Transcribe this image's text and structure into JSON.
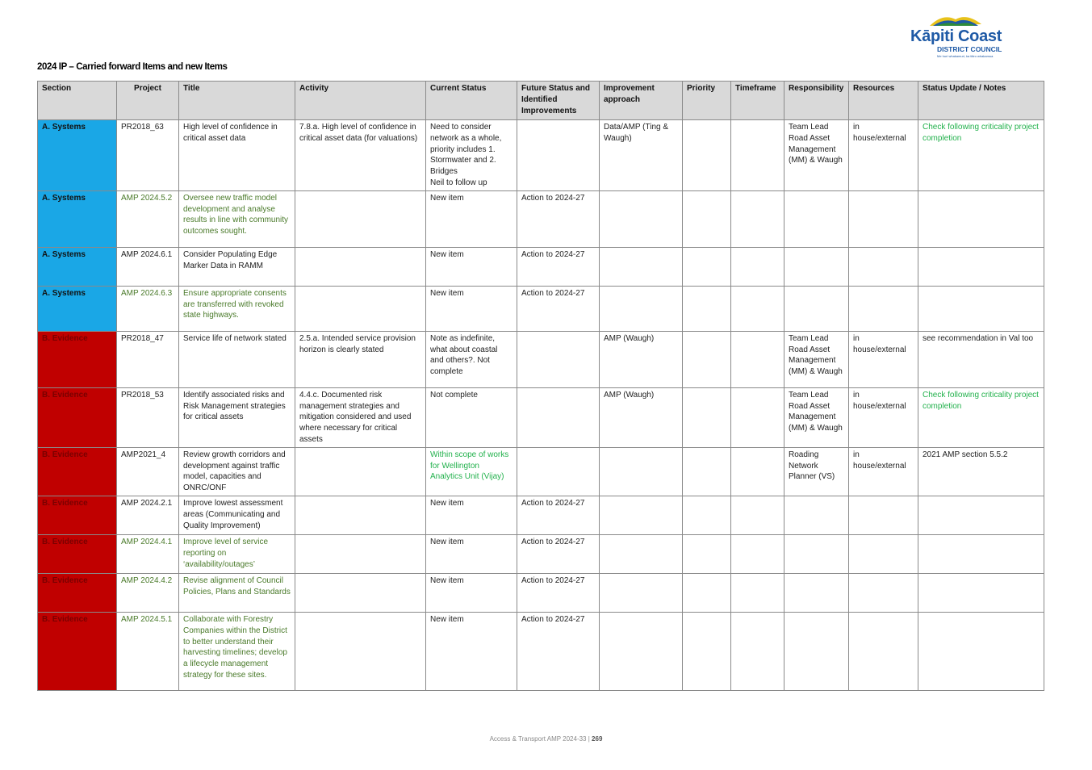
{
  "logo": {
    "name": "Kāpiti Coast",
    "sub": "DISTRICT COUNCIL",
    "tagline": "Me huri whakamuri, ka titiro whakamua"
  },
  "title": "2024 IP – Carried forward Items and new Items",
  "columns": [
    "Section",
    "Project",
    "Title",
    "Activity",
    "Current Status",
    "Future Status and Identified Improvements",
    "Improvement approach",
    "Priority",
    "Timeframe",
    "Responsibility",
    "Resources",
    "Status Update / Notes"
  ],
  "rows": [
    {
      "section": "A. Systems",
      "project": "PR2018_63",
      "title": "High level of confidence in critical  asset data",
      "activity": "7.8.a. High level of confidence in critical  asset data (for valuations)",
      "current": "Need to consider network as a whole, priority includes 1. Stormwater and 2. Bridges\nNeil to follow up",
      "future": "",
      "approach": "Data/AMP (Ting & Waugh)",
      "priority": "",
      "timeframe": "",
      "responsibility": "Team Lead Road Asset Management (MM) & Waugh",
      "resources": "in house/external",
      "notes": "Check following criticality project completion"
    },
    {
      "section": "A. Systems",
      "project": "AMP 2024.5.2",
      "title": "Oversee new traffic model development and analyse results in line with community outcomes sought.",
      "activity": "",
      "current": "New item",
      "future": "Action to 2024-27",
      "approach": "",
      "priority": "",
      "timeframe": "",
      "responsibility": "",
      "resources": "",
      "notes": ""
    },
    {
      "section": "A. Systems",
      "project": "AMP 2024.6.1",
      "title": "Consider Populating Edge Marker Data in RAMM",
      "activity": "",
      "current": "New item",
      "future": "Action to 2024-27",
      "approach": "",
      "priority": "",
      "timeframe": "",
      "responsibility": "",
      "resources": "",
      "notes": ""
    },
    {
      "section": "A. Systems",
      "project": "AMP 2024.6.3",
      "title": "Ensure appropriate consents are transferred with revoked state highways.",
      "activity": "",
      "current": "New item",
      "future": "Action to 2024-27",
      "approach": "",
      "priority": "",
      "timeframe": "",
      "responsibility": "",
      "resources": "",
      "notes": ""
    },
    {
      "section": "B. Evidence",
      "project": "PR2018_47",
      "title": "Service life of network stated",
      "activity": "2.5.a. Intended service provision horizon is clearly stated",
      "current": "Note as indefinite, what about coastal and others?.  Not complete",
      "future": "",
      "approach": "AMP (Waugh)",
      "priority": "",
      "timeframe": "",
      "responsibility": "Team Lead Road Asset Management (MM) & Waugh",
      "resources": "in house/external",
      "notes": "see recommendation in Val too"
    },
    {
      "section": "B. Evidence",
      "project": "PR2018_53",
      "title": "Identify associated risks and Risk Management strategies for critical assets",
      "activity": "4.4.c.  Documented risk management  strategies and mitigation considered and used where necessary for critical assets",
      "current": "Not complete",
      "future": "",
      "approach": "AMP (Waugh)",
      "priority": "",
      "timeframe": "",
      "responsibility": "Team Lead Road Asset Management (MM) & Waugh",
      "resources": "in house/external",
      "notes": "Check following criticality project completion"
    },
    {
      "section": "B. Evidence",
      "project": "AMP2021_4",
      "title": "Review growth corridors and development against traffic model, capacities and ONRC/ONF",
      "activity": "",
      "current": "Within scope of works for Wellington Analytics Unit (Vijay)",
      "future": "",
      "approach": "",
      "priority": "",
      "timeframe": "",
      "responsibility": "Roading Network Planner (VS)",
      "resources": "in house/external",
      "notes": "2021 AMP section 5.5.2"
    },
    {
      "section": "B. Evidence",
      "project": "AMP 2024.2.1",
      "title": "Improve lowest assessment areas (Communicating and Quality Improvement)",
      "activity": "",
      "current": "New item",
      "future": "Action to 2024-27",
      "approach": "",
      "priority": "",
      "timeframe": "",
      "responsibility": "",
      "resources": "",
      "notes": ""
    },
    {
      "section": "B. Evidence",
      "project": "AMP 2024.4.1",
      "title": "Improve level of service reporting on ‘availability/outages’",
      "activity": "",
      "current": "New item",
      "future": "Action to 2024-27",
      "approach": "",
      "priority": "",
      "timeframe": "",
      "responsibility": "",
      "resources": "",
      "notes": ""
    },
    {
      "section": "B. Evidence",
      "project": "AMP 2024.4.2",
      "title": "Revise alignment of Council Policies, Plans and Standards",
      "activity": "",
      "current": "New item",
      "future": "Action to 2024-27",
      "approach": "",
      "priority": "",
      "timeframe": "",
      "responsibility": "",
      "resources": "",
      "notes": ""
    },
    {
      "section": "B. Evidence",
      "project": "AMP 2024.5.1",
      "title": "Collaborate with Forestry Companies within the District to better understand their harvesting timelines; develop a lifecycle management strategy for these sites.",
      "activity": "",
      "current": "New item",
      "future": "Action to 2024-27",
      "approach": "",
      "priority": "",
      "timeframe": "",
      "responsibility": "",
      "resources": "",
      "notes": ""
    }
  ],
  "footer": {
    "text": "Access & Transport AMP 2024-33  |",
    "page": "269"
  },
  "colors": {
    "systems": "#1aa7e6",
    "evidence": "#c00000",
    "header_bg": "#d9d9d9",
    "green_text": "#4a7a2a",
    "bright_green": "#22b14c"
  }
}
